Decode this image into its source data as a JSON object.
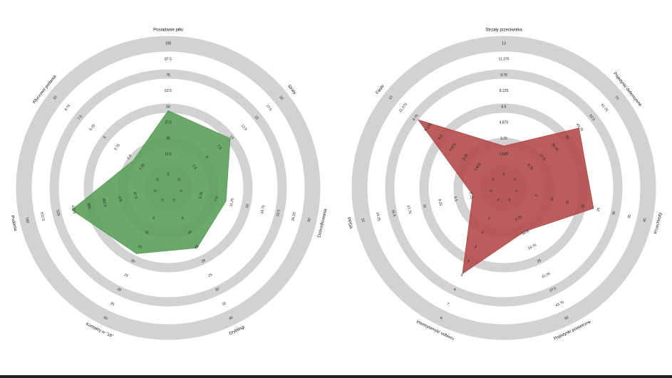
{
  "chart_data": [
    {
      "type": "radar",
      "color": "#5aa05a",
      "axes": [
        {
          "label": "Posiadanie piłki",
          "ticks": [
            "0",
            "12.5",
            "25",
            "37.5",
            "50",
            "62.5",
            "75",
            "87.5",
            "100"
          ],
          "value": 61
        },
        {
          "label": "Straty",
          "ticks": [
            "0",
            "2.5",
            "5",
            "7.5",
            "10",
            "12.5",
            "15",
            "17.5",
            "20"
          ],
          "value": 12.5
        },
        {
          "label": "Dośrodkowania",
          "ticks": [
            "0",
            "3.75",
            "7.5",
            "11.25",
            "15",
            "18.75",
            "22.5",
            "26.25",
            "30"
          ],
          "value": 14
        },
        {
          "label": "Dryblingi",
          "ticks": [
            "0",
            "5",
            "10",
            "15",
            "20",
            "25",
            "30",
            "35",
            "40"
          ],
          "value": 21
        },
        {
          "label": "Kontakty w \"16\"",
          "ticks": [
            "0",
            "5",
            "10",
            "15",
            "20",
            "25",
            "30",
            "35",
            "40"
          ],
          "value": 23
        },
        {
          "label": "Podania",
          "ticks": [
            "0",
            "87.5",
            "175",
            "262.5",
            "350",
            "437.5",
            "525",
            "612.5",
            "700"
          ],
          "value": 545
        },
        {
          "label": "Kluczowe podania",
          "ticks": [
            "0",
            "1.25",
            "2.5",
            "3.75",
            "5",
            "6.25",
            "7.5",
            "8.75",
            "10"
          ],
          "value": 3.5
        }
      ]
    },
    {
      "type": "radar",
      "color": "#b44b4b",
      "axes": [
        {
          "label": "Strzały przeciwnika",
          "ticks": [
            "0",
            "1.625",
            "3.25",
            "4.875",
            "6.5",
            "8.125",
            "9.75",
            "11.375",
            "13"
          ],
          "value": 4.3
        },
        {
          "label": "Pojedynki defensywne",
          "ticks": [
            "0",
            "8.75",
            "17.5",
            "26.25",
            "35",
            "43.75",
            "52.5",
            "61.25",
            "70"
          ],
          "value": 53
        },
        {
          "label": "Przechwyty",
          "ticks": [
            "0",
            "5",
            "10",
            "15",
            "20",
            "25",
            "30",
            "35",
            "40"
          ],
          "value": 29
        },
        {
          "label": "Pojedynki powietrzne",
          "ticks": [
            "0",
            "6.25",
            "12.5",
            "18.75",
            "25",
            "31.25",
            "37.5",
            "43.75",
            "50"
          ],
          "value": 19
        },
        {
          "label": "Intensywność odbioru",
          "ticks": [
            "0",
            "1",
            "2",
            "3",
            "4",
            "5",
            "6",
            "7",
            "8"
          ],
          "value": 6
        },
        {
          "label": "PPDA",
          "ticks": [
            "0",
            "2.75",
            "5.5",
            "8.25",
            "11",
            "13.75",
            "16.5",
            "19.25",
            "22"
          ],
          "value": 5.5
        },
        {
          "label": "Faule",
          "ticks": [
            "0",
            "1.625",
            "3.25",
            "4.875",
            "6.5",
            "8.125",
            "9.75",
            "11.375",
            "13"
          ],
          "value": 11.2
        }
      ]
    }
  ]
}
